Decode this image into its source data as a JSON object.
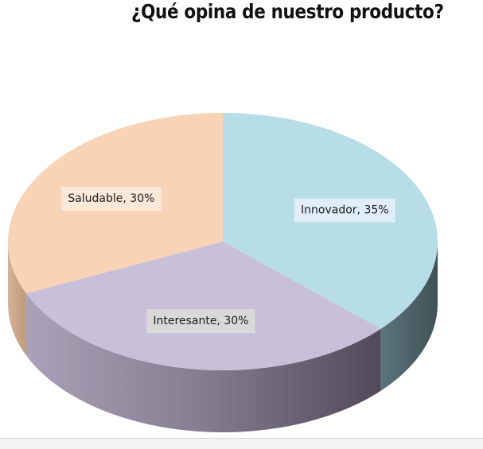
{
  "chart_data": {
    "type": "pie",
    "title": "¿Qué opina de nuestro producto?",
    "slices": [
      {
        "label": "Innovador",
        "value": 35,
        "data_label": "Innovador, 35%",
        "color": "#b7dde6",
        "side_color": "#4e646a",
        "label_bg": "#e1eef9"
      },
      {
        "label": "Interesante",
        "value": 30,
        "data_label": "Interesante, 30%",
        "color": "#c8bfd9",
        "side_color": "#5c5666",
        "label_bg": "#d9d9d9"
      },
      {
        "label": "Saludable",
        "value": 30,
        "data_label": "Saludable, 30%",
        "color": "#f8d3b6",
        "side_color": "#c9a488",
        "label_bg": "#fde9da"
      }
    ]
  }
}
